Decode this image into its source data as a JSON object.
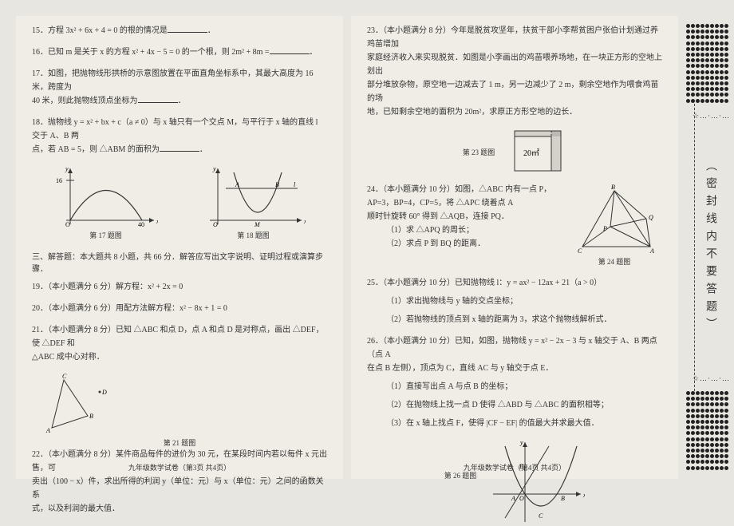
{
  "left": {
    "q15": "15．方程 3x² + 6x + 4 = 0 的根的情况是",
    "q16": "16．已知 m 是关于 x 的方程 x² + 4x − 5 = 0 的一个根，则 2m² + 8m =",
    "q17a": "17．如图，把抛物线形拱桥的示意图放置在平面直角坐标系中，其最大高度为 16 米，跨度为",
    "q17b": "40 米，则此抛物线顶点坐标为",
    "q18a": "18．抛物线 y = x² + bx + c（a ≠ 0）与 x 轴只有一个交点 M，与平行于 x 轴的直线 l 交于 A、B 两",
    "q18b": "点，若 AB = 5，则 △ABM 的面积为",
    "fig17cap": "第 17 题图",
    "fig18cap": "第 18 题图",
    "section3": "三、解答题：本大题共 8 小题，共 66 分．解答应写出文字说明、证明过程或演算步骤．",
    "q19": "19．（本小题满分 6 分）解方程：x² + 2x = 0",
    "q20": "20．（本小题满分 6 分）用配方法解方程：x² − 8x + 1 = 0",
    "q21a": "21．（本小题满分 8 分）已知 △ABC 和点 D，点 A 和点 D 是对称点，画出 △DEF，使 △DEF 和",
    "q21b": "△ABC 成中心对称．",
    "fig21cap": "第 21 题图",
    "q22a": "22．（本小题满分 8 分）某件商品每件的进价为 30 元，在某段时间内若以每件 x 元出售，可",
    "q22b": "卖出（100 − x）件，求出所得的利润 y（单位：元）与 x（单位：元）之间的函数关系",
    "q22c": "式，以及利润的最大值．",
    "footer": "九年级数学试卷（第3页  共4页）"
  },
  "right": {
    "q23a": "23．（本小题满分 8 分）今年是脱贫攻坚年，扶贫干部小李帮贫困户张伯计划通过养鸡苗增加",
    "q23b": "家庭经济收入来实现脱贫．如图是小李画出的鸡苗喂养场地，在一块正方形的空地上划出",
    "q23c": "部分堆放杂物，原空地一边减去了 1 m，另一边减少了 2 m，剩余空地作为喂食鸡苗的场",
    "q23d": "地，已知剩余空地的面积为 20m²，求原正方形空地的边长．",
    "fig23label": "20㎡",
    "fig23cap": "第 23 题图",
    "q24a": "24．（本小题满分 10 分）如图，△ABC 内有一点 P，AP=3，BP=4，CP=5，将 △APC 绕着点 A",
    "q24b": "顺时针旋转 60° 得到 △AQB，连接 PQ．",
    "q24_1": "（1）求 △APQ 的周长；",
    "q24_2": "（2）求点 P 到 BQ 的距离．",
    "fig24cap": "第 24 题图",
    "q25a": "25．（本小题满分 10 分）已知抛物线 l：y = ax² − 12ax + 21（a > 0）",
    "q25_1": "（1）求出抛物线与 y 轴的交点坐标；",
    "q25_2": "（2）若抛物线的顶点到 x 轴的距离为 3，求这个抛物线解析式．",
    "q26a": "26．（本小题满分 10 分）已知，如图，抛物线 y = x² − 2x − 3 与 x 轴交于 A、B 两点（点 A",
    "q26b": "在点 B 左侧），顶点为 C，直线 AC 与 y 轴交于点 E．",
    "q26_1": "（1）直接写出点 A 与点 B 的坐标；",
    "q26_2": "（2）在抛物线上找一点 D 使得 △ABD 与 △ABC 的面积相等；",
    "q26_3": "（3）在 x 轴上找点 F，使得 |CF − EF| 的值最大并求最大值．",
    "fig26cap": "第 26 题图",
    "footer": "九年级数学试卷（第4页  共4页）"
  },
  "margin": {
    "vtext": "（密封线内不要答题）"
  },
  "style": {
    "bg": "#e8e6e0",
    "page_bg": "#f0ede6",
    "text": "#333333",
    "line": "#444444"
  }
}
